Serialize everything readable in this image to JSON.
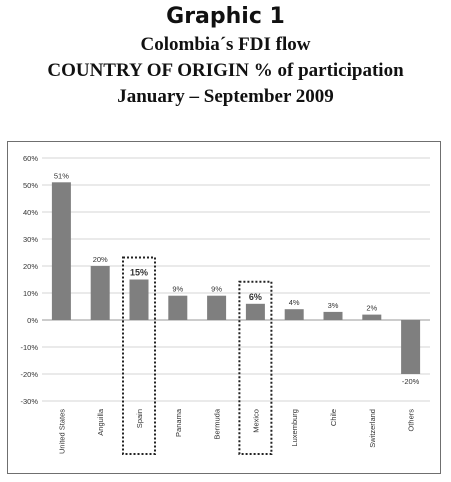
{
  "heading": {
    "graphic": "Graphic 1",
    "title_line1": "Colombia´s FDI flow",
    "title_line2": "COUNTRY OF ORIGIN % of participation",
    "title_line3": "January – September 2009"
  },
  "chart_data": {
    "type": "bar",
    "categories": [
      "United States",
      "Anguilla",
      "Spain",
      "Panama",
      "Bermuda",
      "Mexico",
      "Luxemburg",
      "Chile",
      "Switzerland",
      "Others"
    ],
    "values": [
      51,
      20,
      15,
      9,
      9,
      6,
      4,
      3,
      2,
      -20
    ],
    "data_labels": [
      "51%",
      "20%",
      "15%",
      "9%",
      "9%",
      "6%",
      "4%",
      "3%",
      "2%",
      "-20%"
    ],
    "highlighted": [
      "Spain",
      "Mexico"
    ],
    "ylim": [
      -30,
      60
    ],
    "yticks": [
      60,
      50,
      40,
      30,
      20,
      10,
      0,
      -10,
      -20,
      -30
    ],
    "ytick_labels": [
      "60%",
      "50%",
      "40%",
      "30%",
      "20%",
      "10%",
      "0%",
      "-10%",
      "-20%",
      "-30%"
    ],
    "grid": true,
    "bar_color": "#7f7f7f",
    "grid_color": "#d4d4d4",
    "highlight_border_color": "#222222"
  }
}
